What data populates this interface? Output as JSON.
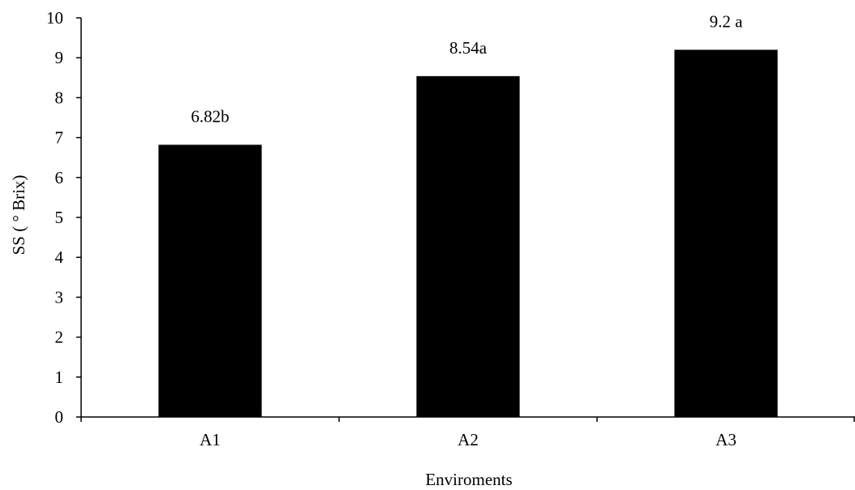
{
  "chart_data": {
    "type": "bar",
    "title": "",
    "categories": [
      "A1",
      "A2",
      "A3"
    ],
    "values": [
      6.82,
      8.54,
      9.2
    ],
    "data_labels": [
      "6.82b",
      "8.54a",
      "9.2 a"
    ],
    "xlabel": "Enviroments",
    "ylabel": "SS ( ° Brix)",
    "ylim": [
      0,
      10
    ],
    "yticks": [
      "0",
      "1",
      "2",
      "3",
      "4",
      "5",
      "6",
      "7",
      "8",
      "9",
      "10"
    ],
    "grid": false,
    "legend": "none",
    "bar_color": "#000000"
  }
}
